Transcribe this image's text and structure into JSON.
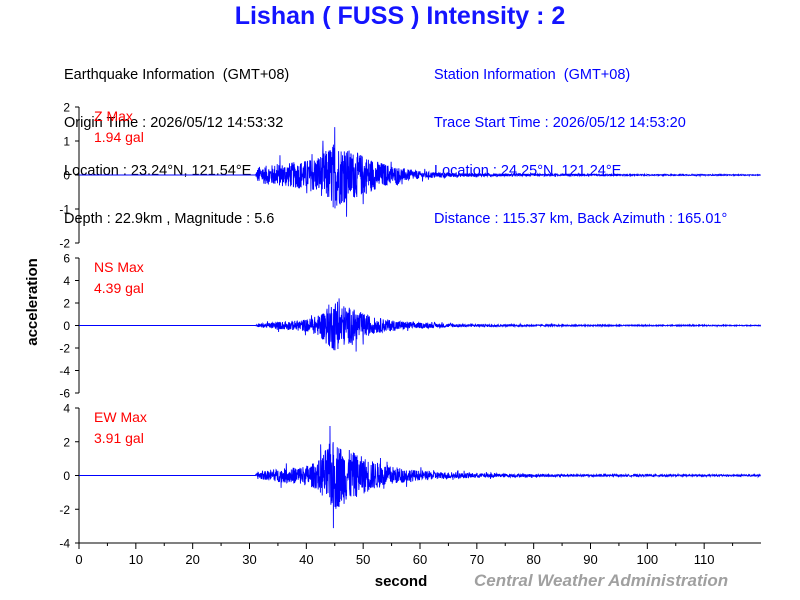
{
  "header": {
    "title": "Lishan ( FUSS ) Intensity : 2"
  },
  "earthquake_info": {
    "heading": "Earthquake Information  (GMT+08)",
    "origin_time": "Origin Time : 2026/05/12 14:53:32",
    "location": "Location : 23.24°N, 121.54°E",
    "depth_magnitude": "Depth : 22.9km , Magnitude : 5.6"
  },
  "station_info": {
    "heading": "Station Information  (GMT+08)",
    "trace_start": "Trace Start Time : 2026/05/12 14:53:20",
    "location": "Location : 24.25°N, 121.24°E",
    "distance": "Distance : 115.37 km, Back Azimuth : 165.01°"
  },
  "footer": {
    "credit": "Central Weather Administration"
  },
  "colors": {
    "title": "#1414ff",
    "trace": "#0000ff",
    "max_label": "#ff0000",
    "station_text": "#0000ff",
    "credit": "#a0a0a0"
  },
  "chart_data": {
    "type": "line",
    "xlabel": "second",
    "ylabel": "acceleration",
    "xlim": [
      0,
      120
    ],
    "xticks": [
      0,
      10,
      20,
      30,
      40,
      50,
      60,
      70,
      80,
      90,
      100,
      110
    ],
    "grid": false,
    "panels": [
      {
        "name": "Z",
        "max_label": "Z Max",
        "max_value": "1.94 gal",
        "ylim": [
          -2,
          2
        ],
        "yticks": [
          -2,
          -1,
          0,
          1,
          2
        ],
        "envelope": [
          [
            0,
            0.0
          ],
          [
            31.0,
            0.0
          ],
          [
            31.5,
            0.45
          ],
          [
            33,
            0.5
          ],
          [
            35,
            0.6
          ],
          [
            38,
            0.7
          ],
          [
            40,
            0.8
          ],
          [
            42,
            1.0
          ],
          [
            43,
            1.2
          ],
          [
            44,
            1.5
          ],
          [
            45,
            1.8
          ],
          [
            46,
            1.6
          ],
          [
            48,
            1.3
          ],
          [
            50,
            1.1
          ],
          [
            52,
            0.8
          ],
          [
            55,
            0.5
          ],
          [
            58,
            0.3
          ],
          [
            60,
            0.2
          ],
          [
            65,
            0.12
          ],
          [
            70,
            0.08
          ],
          [
            80,
            0.05
          ],
          [
            90,
            0.04
          ],
          [
            100,
            0.03
          ],
          [
            110,
            0.03
          ],
          [
            120,
            0.02
          ]
        ]
      },
      {
        "name": "NS",
        "max_label": "NS Max",
        "max_value": "4.39 gal",
        "ylim": [
          -6,
          6
        ],
        "yticks": [
          -6,
          -4,
          -2,
          0,
          2,
          4,
          6
        ],
        "envelope": [
          [
            0,
            0.0
          ],
          [
            31.0,
            0.0
          ],
          [
            31.5,
            0.3
          ],
          [
            33,
            0.4
          ],
          [
            35,
            0.6
          ],
          [
            38,
            0.8
          ],
          [
            40,
            1.0
          ],
          [
            42,
            1.6
          ],
          [
            43,
            2.5
          ],
          [
            44,
            3.5
          ],
          [
            45,
            4.2
          ],
          [
            46,
            3.6
          ],
          [
            48,
            2.8
          ],
          [
            50,
            2.0
          ],
          [
            52,
            1.3
          ],
          [
            55,
            0.9
          ],
          [
            58,
            0.6
          ],
          [
            60,
            0.45
          ],
          [
            65,
            0.3
          ],
          [
            70,
            0.2
          ],
          [
            80,
            0.12
          ],
          [
            90,
            0.1
          ],
          [
            100,
            0.08
          ],
          [
            110,
            0.08
          ],
          [
            120,
            0.06
          ]
        ]
      },
      {
        "name": "EW",
        "max_label": "EW Max",
        "max_value": "3.91 gal",
        "ylim": [
          -4,
          4
        ],
        "yticks": [
          -4,
          -2,
          0,
          2,
          4
        ],
        "envelope": [
          [
            0,
            0.0
          ],
          [
            31.0,
            0.0
          ],
          [
            31.5,
            0.4
          ],
          [
            33,
            0.5
          ],
          [
            35,
            0.7
          ],
          [
            38,
            0.9
          ],
          [
            40,
            1.1
          ],
          [
            42,
            1.5
          ],
          [
            43,
            2.5
          ],
          [
            44,
            3.4
          ],
          [
            45,
            3.9
          ],
          [
            46,
            3.3
          ],
          [
            48,
            2.6
          ],
          [
            50,
            2.0
          ],
          [
            52,
            1.5
          ],
          [
            55,
            1.0
          ],
          [
            58,
            0.7
          ],
          [
            60,
            0.5
          ],
          [
            65,
            0.35
          ],
          [
            70,
            0.25
          ],
          [
            80,
            0.15
          ],
          [
            90,
            0.12
          ],
          [
            100,
            0.1
          ],
          [
            110,
            0.09
          ],
          [
            120,
            0.08
          ]
        ]
      }
    ]
  }
}
